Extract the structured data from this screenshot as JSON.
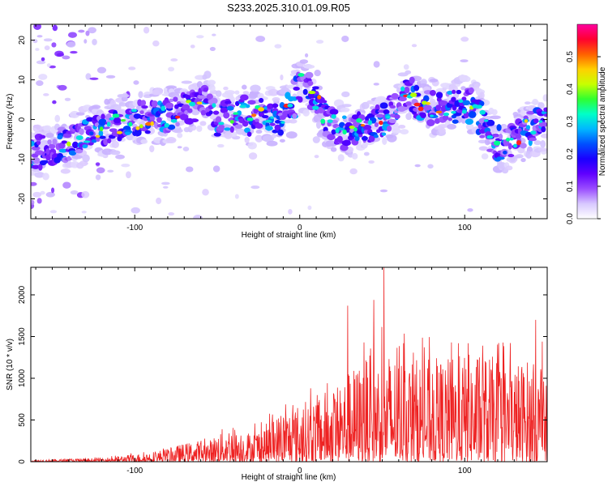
{
  "chart_data": [
    {
      "type": "heatmap",
      "title": "S233.2025.310.01.09.R05",
      "xlabel": "Height of straight line (km)",
      "ylabel": "Frequency (Hz)",
      "xlim": [
        -163,
        150
      ],
      "ylim": [
        -25,
        24
      ],
      "xticks": [
        -100,
        0,
        100
      ],
      "yticks": [
        -20,
        -10,
        0,
        10,
        20
      ],
      "colorbar": {
        "label": "Normalized spectral amplitude",
        "range": [
          0.0,
          0.6
        ],
        "ticks": [
          0.0,
          0.1,
          0.2,
          0.3,
          0.4,
          0.5
        ],
        "colormap": [
          "#ffffff",
          "#d8c8ff",
          "#9a4dff",
          "#6000ff",
          "#1a00ff",
          "#0050ff",
          "#00b8ff",
          "#00ffc8",
          "#30ff30",
          "#c8ff00",
          "#ffd000",
          "#ff6000",
          "#ff0030",
          "#ff00a0"
        ]
      },
      "ridge": {
        "x": [
          -163,
          -150,
          -140,
          -130,
          -120,
          -110,
          -100,
          -90,
          -80,
          -70,
          -60,
          -55,
          -50,
          -45,
          -40,
          -35,
          -30,
          -25,
          -20,
          -15,
          -10,
          -5,
          0,
          5,
          10,
          15,
          20,
          25,
          30,
          40,
          50,
          60,
          65,
          70,
          80,
          90,
          100,
          105,
          110,
          115,
          120,
          125,
          130,
          140,
          150
        ],
        "y": [
          -9,
          -7,
          -6,
          -4,
          -3,
          -1,
          0,
          1,
          1,
          3,
          4,
          5,
          -1,
          1,
          0,
          2,
          0,
          2,
          0,
          0,
          1,
          3,
          9,
          8,
          5,
          0,
          -1,
          -4,
          -2,
          -3,
          0,
          4,
          7,
          5,
          3,
          3,
          4,
          3,
          0,
          -4,
          -6,
          -6,
          -5,
          -2,
          -1
        ]
      }
    },
    {
      "type": "line",
      "title": "",
      "xlabel": "Height of straight line (km)",
      "ylabel": "SNR (10 * v/v)",
      "xlim": [
        -163,
        150
      ],
      "ylim": [
        0,
        2330
      ],
      "xticks": [
        -100,
        0,
        100
      ],
      "yticks": [
        0,
        500,
        1000,
        1500,
        2000
      ],
      "series": [
        {
          "name": "SNR",
          "color": "#ee2222",
          "x": [
            -163,
            -140,
            -120,
            -100,
            -90,
            -80,
            -70,
            -60,
            -55,
            -50,
            -45,
            -40,
            -35,
            -30,
            -25,
            -20,
            -10,
            0,
            10,
            20,
            30,
            40,
            50,
            60,
            70,
            80,
            90,
            100,
            110,
            120,
            130,
            140,
            150
          ],
          "envelope": [
            20,
            35,
            45,
            90,
            120,
            160,
            220,
            260,
            250,
            350,
            430,
            420,
            390,
            360,
            420,
            460,
            620,
            700,
            800,
            900,
            1100,
            1250,
            1350,
            1300,
            1250,
            1250,
            1250,
            1300,
            1300,
            1250,
            1200,
            1250,
            900
          ],
          "peaks": [
            {
              "x": 29,
              "y": 1870
            },
            {
              "x": 39,
              "y": 1430
            },
            {
              "x": 45,
              "y": 1940
            },
            {
              "x": 51,
              "y": 2330
            },
            {
              "x": 63,
              "y": 1420
            },
            {
              "x": 92,
              "y": 1430
            },
            {
              "x": 102,
              "y": 1420
            },
            {
              "x": 111,
              "y": 1390
            },
            {
              "x": 143,
              "y": 1700
            },
            {
              "x": 147,
              "y": 1440
            }
          ]
        }
      ]
    }
  ]
}
